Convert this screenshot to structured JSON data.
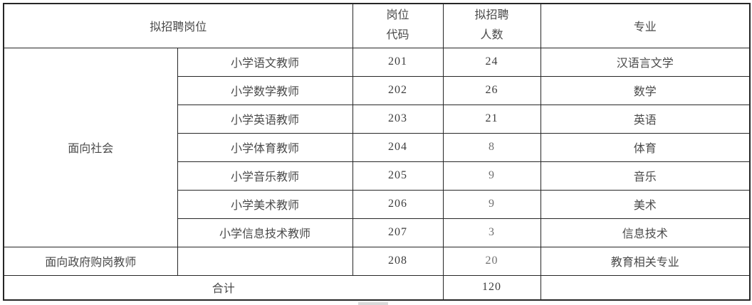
{
  "colors": {
    "background": "#ffffff",
    "border": "#262626",
    "text": "#4a4a4a",
    "text_dim": "#707070",
    "num": "#3d3d3d",
    "artifact": "#d9d9d9"
  },
  "table": {
    "header": {
      "position": "拟招聘岗位",
      "code_top": "岗位",
      "code_bottom": "代码",
      "count_top": "拟招聘",
      "count_bottom": "人数",
      "major": "专业"
    },
    "group_label": "面向社会",
    "rows": [
      {
        "position": "小学语文教师",
        "code": "201",
        "count": "24",
        "major": "汉语言文学"
      },
      {
        "position": "小学数学教师",
        "code": "202",
        "count": "26",
        "major": "数学"
      },
      {
        "position": "小学英语教师",
        "code": "203",
        "count": "21",
        "major": "英语"
      },
      {
        "position": "小学体育教师",
        "code": "204",
        "count": "8",
        "major": "体育"
      },
      {
        "position": "小学音乐教师",
        "code": "205",
        "count": "9",
        "major": "音乐"
      },
      {
        "position": "小学美术教师",
        "code": "206",
        "count": "9",
        "major": "美术"
      },
      {
        "position": "小学信息技术教师",
        "code": "207",
        "count": "3",
        "major": "信息技术"
      }
    ],
    "gov_row": {
      "category": "面向政府购岗教师",
      "position": "",
      "code": "208",
      "count": "20",
      "major": "教育相关专业"
    },
    "total_row": {
      "label": "合计",
      "count": "120",
      "major": ""
    }
  }
}
